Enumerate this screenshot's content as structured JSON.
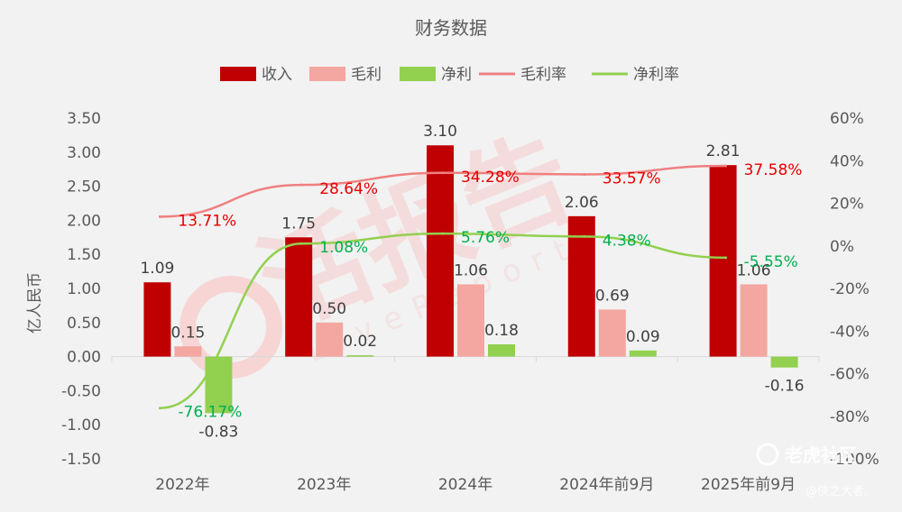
{
  "chart_data": {
    "type": "bar",
    "title": "财务数据",
    "ylabel": "亿人民币",
    "categories": [
      "2022年",
      "2023年",
      "2024年",
      "2024年前9月",
      "2025年前9月"
    ],
    "ylim": [
      -1.5,
      3.5
    ],
    "y_ticks": [
      "3.50",
      "3.00",
      "2.50",
      "2.00",
      "1.50",
      "1.00",
      "0.50",
      "0.00",
      "-0.50",
      "-1.00",
      "-1.50"
    ],
    "y2lim": [
      -100,
      60
    ],
    "y2_ticks": [
      "60%",
      "40%",
      "20%",
      "0%",
      "-20%",
      "-40%",
      "-60%",
      "-80%",
      "-100%"
    ],
    "grid": false,
    "legend_position": "top",
    "series": [
      {
        "name": "收入",
        "kind": "bar",
        "color": "#c00000",
        "values": [
          1.09,
          1.75,
          3.1,
          2.06,
          2.81
        ],
        "labels": [
          "1.09",
          "1.75",
          "3.10",
          "2.06",
          "2.81"
        ]
      },
      {
        "name": "毛利",
        "kind": "bar",
        "color": "#f4a6a0",
        "values": [
          0.15,
          0.5,
          1.06,
          0.69,
          1.06
        ],
        "labels": [
          "0.15",
          "0.50",
          "1.06",
          "0.69",
          "1.06"
        ]
      },
      {
        "name": "净利",
        "kind": "bar",
        "color": "#92d050",
        "values": [
          -0.83,
          0.02,
          0.18,
          0.09,
          -0.16
        ],
        "labels": [
          "-0.83",
          "0.02",
          "0.18",
          "0.09",
          "-0.16"
        ]
      },
      {
        "name": "毛利率",
        "kind": "line",
        "axis": "right",
        "color": "#f08080",
        "label_color": "#e60000",
        "values": [
          13.71,
          28.64,
          34.28,
          33.57,
          37.58
        ],
        "labels": [
          "13.71%",
          "28.64%",
          "34.28%",
          "33.57%",
          "37.58%"
        ]
      },
      {
        "name": "净利率",
        "kind": "line",
        "axis": "right",
        "color": "#92d050",
        "label_color": "#00b050",
        "values": [
          -76.17,
          1.08,
          5.76,
          4.38,
          -5.55
        ],
        "labels": [
          "-76.17%",
          "1.08%",
          "5.76%",
          "4.38%",
          "-5.55%"
        ]
      }
    ]
  },
  "watermark": {
    "text": "活报告",
    "subtext": "LiveReport",
    "badge_text": "老虎社区",
    "badge_sub": "@侠之大者."
  }
}
